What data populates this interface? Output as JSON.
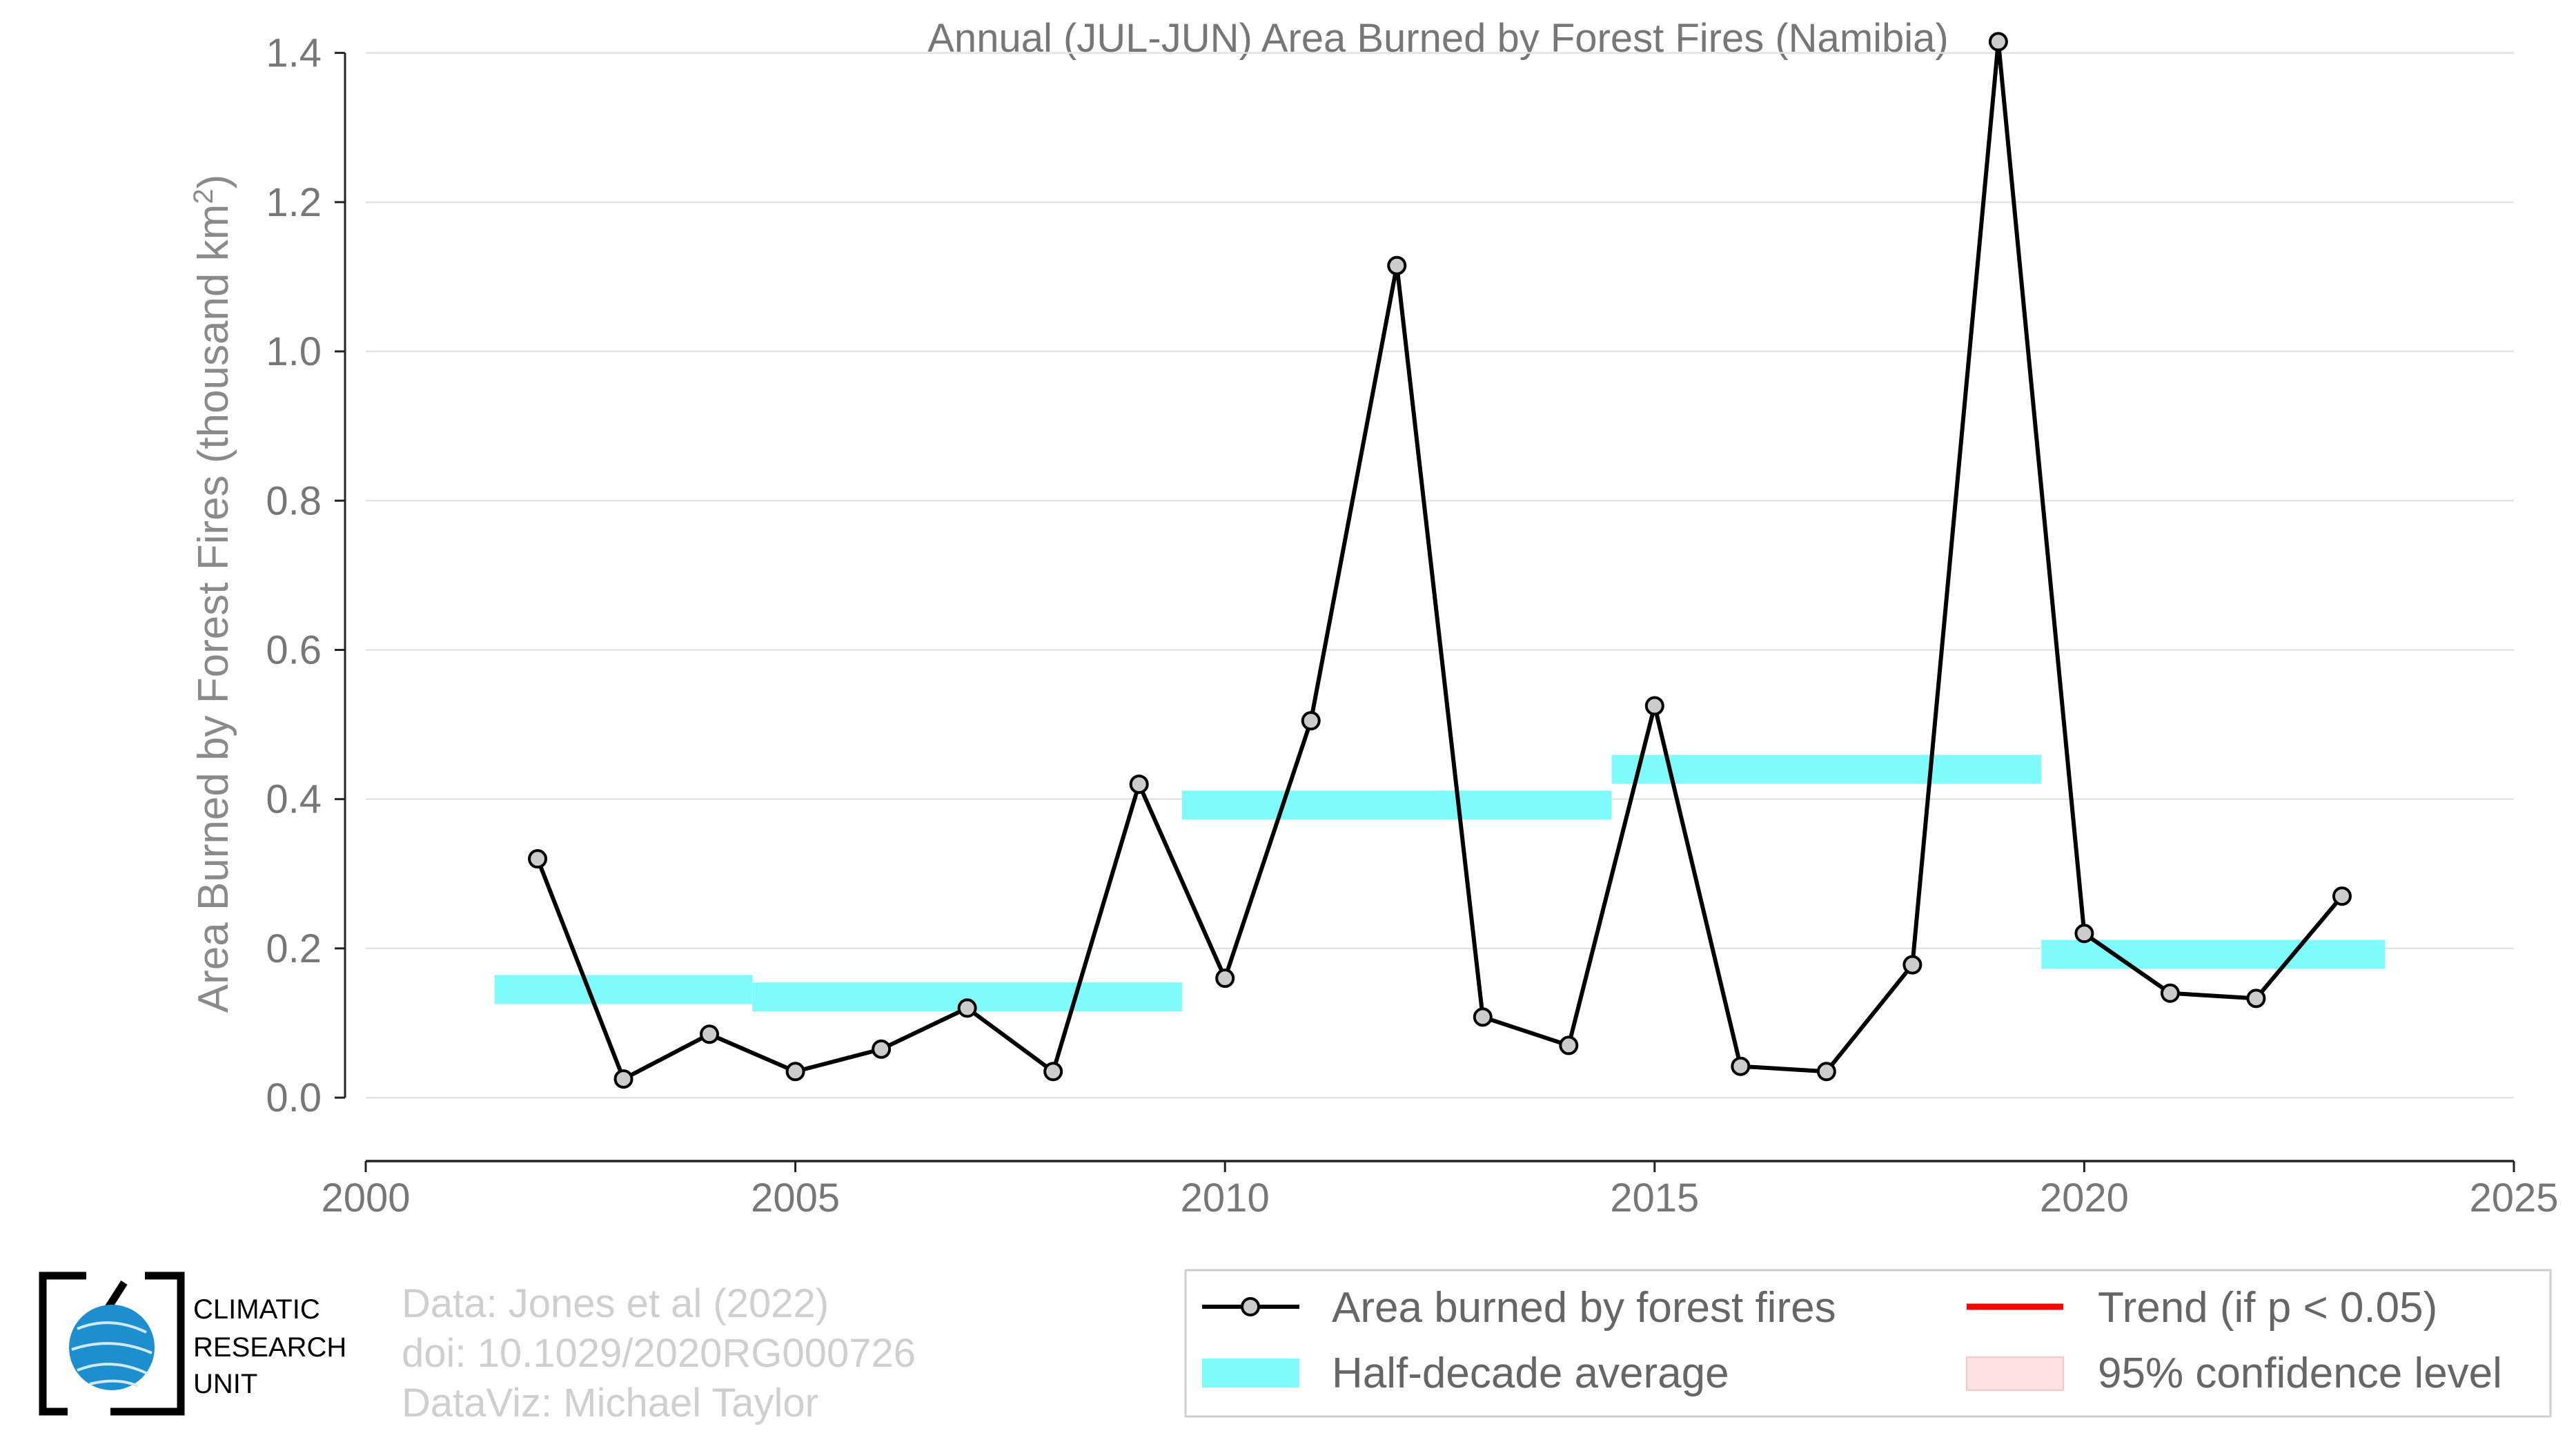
{
  "chart_data": {
    "type": "line",
    "title": "Annual (JUL-JUN) Area Burned by Forest Fires (Namibia)",
    "ylabel": "Area Burned by Forest Fires (thousand km²)",
    "xlabel": "",
    "xlim": [
      2000,
      2025
    ],
    "ylim": [
      -0.085,
      1.42
    ],
    "x_ticks": [
      "2000",
      "2005",
      "2010",
      "2015",
      "2020",
      "2025"
    ],
    "y_ticks": [
      "0.0",
      "0.2",
      "0.4",
      "0.6",
      "0.8",
      "1.0",
      "1.2",
      "1.4"
    ],
    "grid": true,
    "series": [
      {
        "name": "Area burned by forest fires",
        "x": [
          2002,
          2003,
          2004,
          2005,
          2006,
          2007,
          2008,
          2009,
          2010,
          2011,
          2012,
          2013,
          2014,
          2015,
          2016,
          2017,
          2018,
          2019,
          2020,
          2021,
          2022,
          2023
        ],
        "values": [
          0.32,
          0.025,
          0.085,
          0.035,
          0.065,
          0.12,
          0.035,
          0.42,
          0.16,
          0.505,
          1.115,
          0.108,
          0.07,
          0.525,
          0.042,
          0.035,
          0.178,
          1.415,
          0.22,
          0.14,
          0.133,
          0.27
        ],
        "color": "#000000",
        "marker_fill": "#cccccc"
      }
    ],
    "half_decade_average": {
      "name": "Half-decade average",
      "color": "#7ffbfb",
      "segments": [
        {
          "x_start": 2001.5,
          "x_end": 2004.5,
          "value": 0.145
        },
        {
          "x_start": 2004.5,
          "x_end": 2009.5,
          "value": 0.135
        },
        {
          "x_start": 2009.5,
          "x_end": 2014.5,
          "value": 0.392
        },
        {
          "x_start": 2014.5,
          "x_end": 2019.5,
          "value": 0.44
        },
        {
          "x_start": 2019.5,
          "x_end": 2023.5,
          "value": 0.192
        }
      ]
    },
    "legend": {
      "placement": "bottom-right",
      "entries": [
        {
          "label": "Area burned by forest fires",
          "kind": "line-marker",
          "color": "#000000"
        },
        {
          "label": "Trend (if p < 0.05)",
          "kind": "line",
          "color": "#ff0000"
        },
        {
          "label": "Half-decade average",
          "kind": "band",
          "color": "#7ffbfb"
        },
        {
          "label": "95% confidence level",
          "kind": "band",
          "color": "#fde0e0"
        }
      ]
    }
  },
  "credits": {
    "line1": "Data: Jones et al (2022)",
    "line2": "doi: 10.1029/2020RG000726",
    "line3": "DataViz: Michael Taylor"
  },
  "logo": {
    "line1": "CLIMATIC",
    "line2": "RESEARCH",
    "line3": "UNIT",
    "globe_color": "#1e8fce"
  }
}
